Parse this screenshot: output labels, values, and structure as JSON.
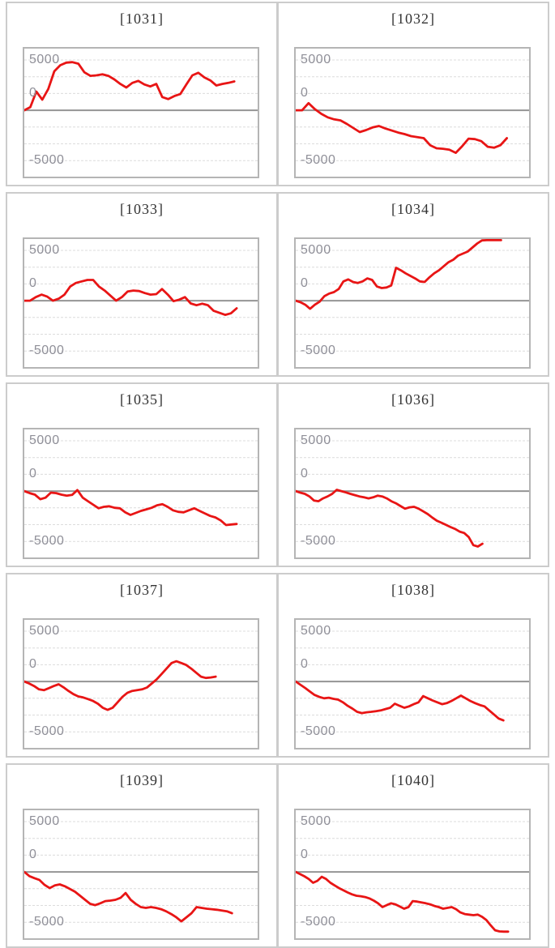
{
  "style": {
    "line_color": "#e81515",
    "grid_color": "#dcdcdc",
    "zero_line_color": "#949494",
    "plot_border_color": "#b5b5b5",
    "panel_border_color": "#cccccc",
    "tick_label_color": "#8f8f98",
    "title_color": "#333333"
  },
  "chart_data": [
    {
      "type": "line",
      "title": "[1031]",
      "y_ticks": [
        "5000",
        "0",
        "-5000"
      ],
      "ylim": [
        -6650,
        6250
      ],
      "grid": "dashed-horizontal",
      "zero_line": true,
      "x_end_frac": 0.9,
      "values": [
        0,
        300,
        1850,
        1050,
        2100,
        3850,
        4450,
        4700,
        4750,
        4600,
        3750,
        3400,
        3450,
        3550,
        3400,
        3050,
        2600,
        2250,
        2700,
        2900,
        2550,
        2350,
        2600,
        1300,
        1100,
        1400,
        1600,
        2550,
        3450,
        3700,
        3250,
        2950,
        2450,
        2600,
        2700,
        2850
      ]
    },
    {
      "type": "line",
      "title": "[1032]",
      "y_ticks": [
        "5000",
        "0",
        "-5000"
      ],
      "ylim": [
        -6650,
        6250
      ],
      "grid": "dashed-horizontal",
      "zero_line": true,
      "x_end_frac": 0.905,
      "values": [
        0,
        0,
        700,
        100,
        -350,
        -700,
        -900,
        -1000,
        -1350,
        -1750,
        -2150,
        -1950,
        -1700,
        -1550,
        -1800,
        -2000,
        -2200,
        -2350,
        -2550,
        -2650,
        -2750,
        -3450,
        -3750,
        -3800,
        -3900,
        -4200,
        -3550,
        -2800,
        -2850,
        -3050,
        -3600,
        -3700,
        -3450,
        -2750
      ]
    },
    {
      "type": "line",
      "title": "[1033]",
      "y_ticks": [
        "5000",
        "0",
        "-5000"
      ],
      "ylim": [
        -6650,
        6250
      ],
      "grid": "dashed-horizontal",
      "zero_line": true,
      "x_end_frac": 0.91,
      "values": [
        0,
        0,
        350,
        600,
        400,
        0,
        200,
        600,
        1400,
        1750,
        1900,
        2050,
        2050,
        1400,
        1000,
        500,
        0,
        350,
        900,
        1000,
        950,
        750,
        600,
        650,
        1150,
        600,
        -50,
        100,
        350,
        -270,
        -450,
        -300,
        -450,
        -1000,
        -1200,
        -1400,
        -1250,
        -750
      ]
    },
    {
      "type": "line",
      "title": "[1034]",
      "y_ticks": [
        "5000",
        "0",
        "-5000"
      ],
      "ylim": [
        -6650,
        6250
      ],
      "grid": "dashed-horizontal",
      "zero_line": true,
      "clipped_at_top": true,
      "x_end_frac": 0.88,
      "values": [
        0,
        -150,
        -400,
        -800,
        -400,
        -100,
        450,
        700,
        850,
        1150,
        1900,
        2100,
        1850,
        1750,
        1900,
        2200,
        2050,
        1400,
        1250,
        1300,
        1500,
        3250,
        3000,
        2700,
        2450,
        2200,
        1900,
        1850,
        2300,
        2700,
        3000,
        3400,
        3800,
        4050,
        4450,
        4650,
        4850,
        5250,
        5650,
        5950,
        6150,
        6350,
        6400,
        6400
      ]
    },
    {
      "type": "line",
      "title": "[1035]",
      "y_ticks": [
        "5000",
        "0",
        "-5000"
      ],
      "ylim": [
        -6650,
        6250
      ],
      "grid": "dashed-horizontal",
      "zero_line": true,
      "x_end_frac": 0.91,
      "values": [
        0,
        -200,
        -350,
        -800,
        -650,
        -150,
        -200,
        -350,
        -450,
        -380,
        100,
        -650,
        -1000,
        -1350,
        -1700,
        -1550,
        -1500,
        -1650,
        -1700,
        -2100,
        -2350,
        -2150,
        -1950,
        -1800,
        -1650,
        -1400,
        -1300,
        -1550,
        -1900,
        -2050,
        -2100,
        -1900,
        -1700,
        -1950,
        -2200,
        -2450,
        -2600,
        -2900,
        -3350,
        -3300,
        -3250
      ]
    },
    {
      "type": "line",
      "title": "[1036]",
      "y_ticks": [
        "5000",
        "0",
        "-5000"
      ],
      "ylim": [
        -6650,
        6250
      ],
      "grid": "dashed-horizontal",
      "zero_line": true,
      "x_end_frac": 0.8,
      "values": [
        0,
        -150,
        -270,
        -530,
        -930,
        -1000,
        -720,
        -530,
        -270,
        130,
        0,
        -130,
        -270,
        -400,
        -530,
        -620,
        -720,
        -620,
        -450,
        -530,
        -720,
        -1000,
        -1200,
        -1470,
        -1740,
        -1600,
        -1550,
        -1740,
        -2000,
        -2270,
        -2620,
        -2930,
        -3120,
        -3340,
        -3550,
        -3740,
        -4000,
        -4140,
        -4540,
        -5340,
        -5470,
        -5200
      ]
    },
    {
      "type": "line",
      "title": "[1037]",
      "y_ticks": [
        "5000",
        "0",
        "-5000"
      ],
      "ylim": [
        -6650,
        6250
      ],
      "grid": "dashed-horizontal",
      "zero_line": true,
      "x_end_frac": 0.82,
      "values": [
        0,
        -200,
        -450,
        -780,
        -860,
        -660,
        -450,
        -270,
        -580,
        -930,
        -1250,
        -1470,
        -1580,
        -1740,
        -1920,
        -2190,
        -2590,
        -2800,
        -2590,
        -2060,
        -1520,
        -1120,
        -930,
        -860,
        -780,
        -590,
        -190,
        220,
        750,
        1280,
        1820,
        2000,
        1820,
        1630,
        1280,
        880,
        480,
        350,
        400,
        480
      ]
    },
    {
      "type": "line",
      "title": "[1038]",
      "y_ticks": [
        "5000",
        "0",
        "-5000"
      ],
      "ylim": [
        -6650,
        6250
      ],
      "grid": "dashed-horizontal",
      "zero_line": true,
      "x_end_frac": 0.89,
      "values": [
        0,
        -320,
        -640,
        -990,
        -1330,
        -1520,
        -1660,
        -1600,
        -1710,
        -1790,
        -2060,
        -2400,
        -2670,
        -2990,
        -3120,
        -3040,
        -2990,
        -2930,
        -2860,
        -2720,
        -2590,
        -2190,
        -2400,
        -2590,
        -2460,
        -2240,
        -2060,
        -1440,
        -1660,
        -1870,
        -2060,
        -2240,
        -2140,
        -1920,
        -1660,
        -1390,
        -1660,
        -1920,
        -2140,
        -2320,
        -2460,
        -2860,
        -3260,
        -3660,
        -3840
      ]
    },
    {
      "type": "line",
      "title": "[1039]",
      "y_ticks": [
        "5000",
        "0",
        "-5000"
      ],
      "ylim": [
        -6650,
        6250
      ],
      "grid": "dashed-horizontal",
      "zero_line": true,
      "x_end_frac": 0.89,
      "values": [
        0,
        -420,
        -620,
        -800,
        -1280,
        -1600,
        -1340,
        -1230,
        -1420,
        -1680,
        -1950,
        -2350,
        -2750,
        -3150,
        -3280,
        -3100,
        -2880,
        -2830,
        -2750,
        -2560,
        -2080,
        -2750,
        -3150,
        -3470,
        -3550,
        -3470,
        -3550,
        -3680,
        -3890,
        -4160,
        -4480,
        -4880,
        -4480,
        -4080,
        -3470,
        -3550,
        -3630,
        -3680,
        -3740,
        -3820,
        -3890,
        -4080
      ]
    },
    {
      "type": "line",
      "title": "[1040]",
      "y_ticks": [
        "5000",
        "0",
        "-5000"
      ],
      "ylim": [
        -6650,
        6250
      ],
      "grid": "dashed-horizontal",
      "zero_line": true,
      "x_end_frac": 0.91,
      "values": [
        0,
        -220,
        -430,
        -700,
        -1070,
        -880,
        -480,
        -700,
        -1070,
        -1340,
        -1600,
        -1820,
        -2030,
        -2220,
        -2350,
        -2400,
        -2480,
        -2620,
        -2830,
        -3100,
        -3470,
        -3280,
        -3100,
        -3200,
        -3420,
        -3630,
        -3470,
        -2880,
        -2930,
        -3020,
        -3100,
        -3200,
        -3360,
        -3470,
        -3630,
        -3550,
        -3470,
        -3680,
        -4000,
        -4160,
        -4220,
        -4270,
        -4220,
        -4430,
        -4750,
        -5280,
        -5760,
        -5870,
        -5900,
        -5900
      ]
    }
  ]
}
